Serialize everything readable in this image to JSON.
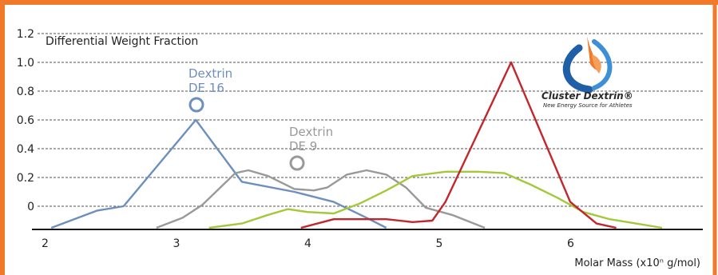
{
  "chart_data": {
    "type": "line",
    "title": "",
    "ylabel": "Differential Weight Fraction",
    "xlabel": "Molar Mass (x10ⁿ g/mol)",
    "ylim": [
      -0.15,
      1.25
    ],
    "xlim": [
      2,
      7
    ],
    "y_ticks": [
      "1.2",
      "1.0",
      "0.8",
      "0.6",
      "0.4",
      "0.2",
      "0"
    ],
    "y_tick_values": [
      1.2,
      1.0,
      0.8,
      0.6,
      0.4,
      0.2,
      0.0
    ],
    "x_ticks": [
      "2",
      "3",
      "4",
      "5",
      "6"
    ],
    "x_tick_values": [
      2,
      3,
      4,
      5,
      6
    ],
    "grid": "horizontal dashed",
    "series": [
      {
        "name": "Dextrin DE 16",
        "color": "#6d8fbd",
        "x": [
          2.05,
          2.4,
          2.6,
          3.15,
          3.5,
          3.9,
          4.2,
          4.45,
          4.6
        ],
        "y": [
          -0.15,
          -0.03,
          0.0,
          0.6,
          0.17,
          0.1,
          0.03,
          -0.08,
          -0.15
        ]
      },
      {
        "name": "Dextrin DE 9",
        "color": "#999999",
        "x": [
          2.85,
          3.05,
          3.2,
          3.45,
          3.55,
          3.7,
          3.9,
          4.05,
          4.15,
          4.3,
          4.45,
          4.6,
          4.75,
          4.9,
          5.1,
          5.35
        ],
        "y": [
          -0.15,
          -0.08,
          0.01,
          0.23,
          0.25,
          0.21,
          0.12,
          0.11,
          0.13,
          0.22,
          0.25,
          0.22,
          0.13,
          -0.01,
          -0.06,
          -0.15
        ]
      },
      {
        "name": "Cluster Dextrin",
        "color": "#a3c93a",
        "x": [
          3.25,
          3.5,
          3.7,
          3.85,
          4.0,
          4.2,
          4.4,
          4.6,
          4.8,
          5.05,
          5.3,
          5.5,
          5.7,
          5.9,
          6.1,
          6.3,
          6.5,
          6.7
        ],
        "y": [
          -0.15,
          -0.12,
          -0.06,
          -0.02,
          -0.04,
          -0.05,
          0.02,
          0.11,
          0.21,
          0.24,
          0.24,
          0.23,
          0.15,
          0.06,
          -0.04,
          -0.09,
          -0.12,
          -0.15
        ]
      },
      {
        "name": "",
        "color": "#c1272d",
        "x": [
          3.95,
          4.2,
          4.45,
          4.6,
          4.8,
          4.95,
          5.05,
          5.55,
          6.0,
          6.2,
          6.35
        ],
        "y": [
          -0.15,
          -0.09,
          -0.09,
          -0.09,
          -0.11,
          -0.1,
          0.03,
          1.0,
          0.03,
          -0.12,
          -0.15
        ]
      }
    ],
    "annotations": [
      {
        "lines": [
          "Dextrin",
          "DE 16"
        ],
        "color": "#6d8fbd"
      },
      {
        "lines": [
          "Dextrin",
          "DE 9"
        ],
        "color": "#999999"
      }
    ],
    "logo": {
      "title": "Cluster Dextrin®",
      "subtitle": "New Energy Source for Athletes"
    }
  },
  "colors": {
    "border": "#f07a2a",
    "grid": "#555555",
    "axis": "#1a1a1a"
  }
}
